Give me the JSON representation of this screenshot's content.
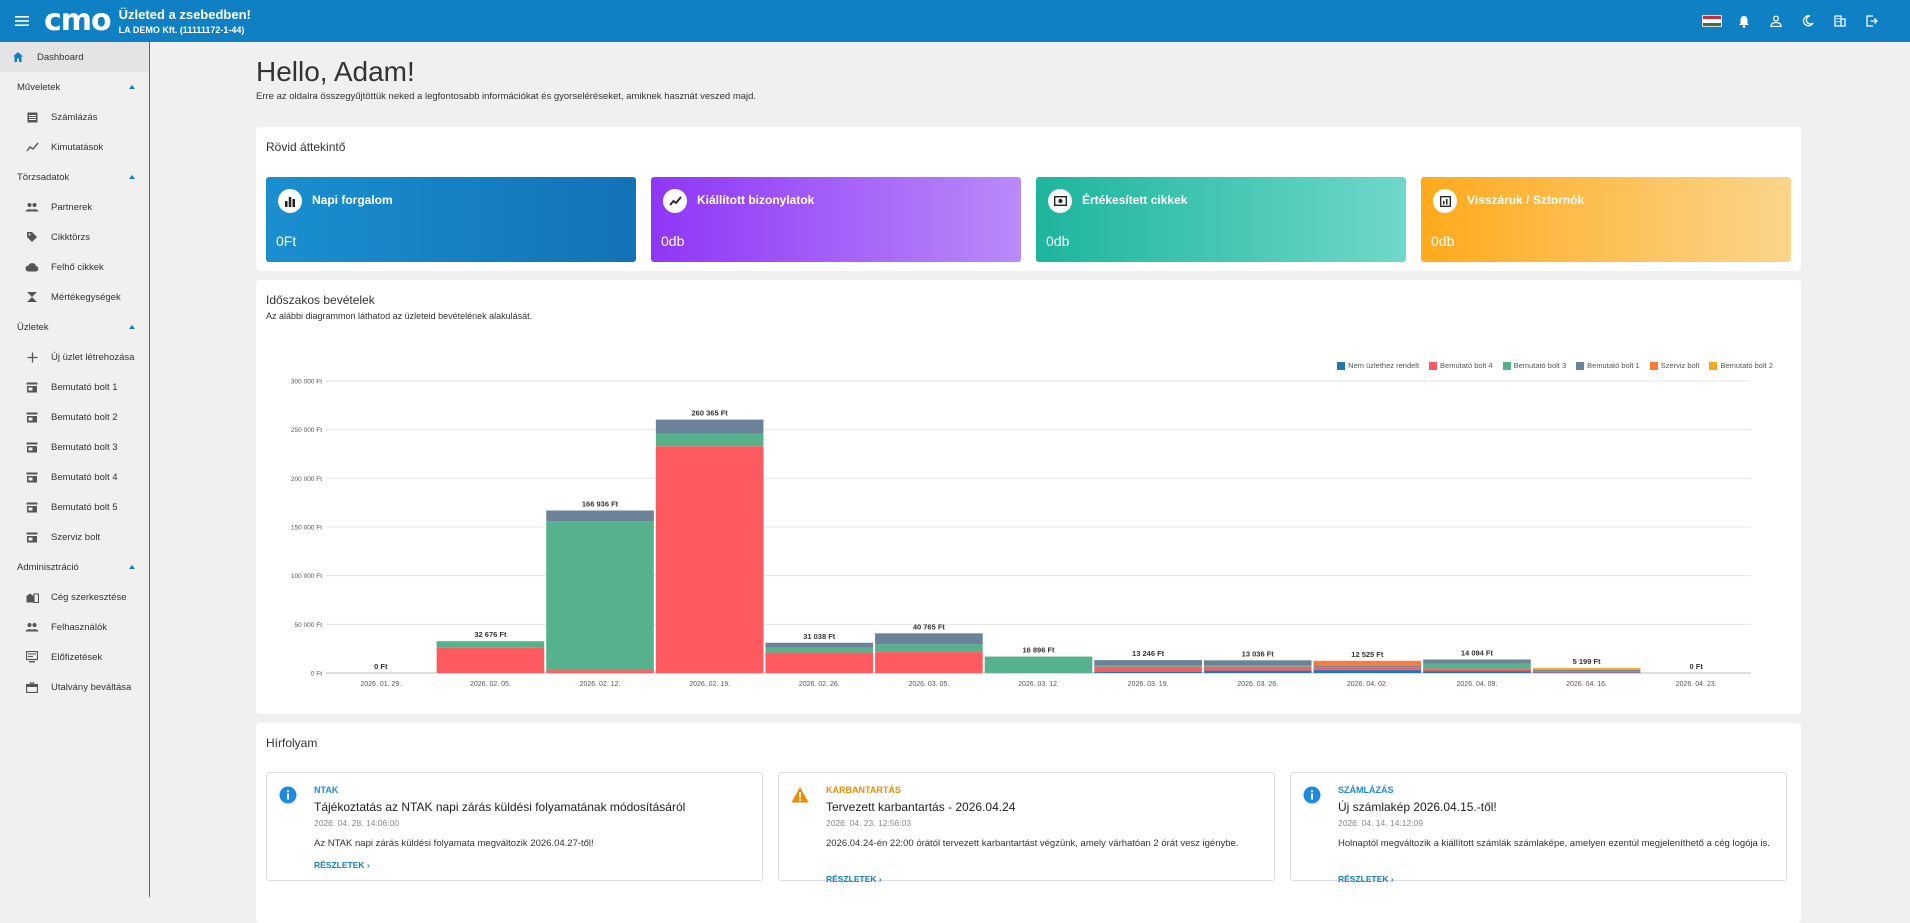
{
  "header": {
    "logo": "cmo",
    "title": "Üzleted a zsebedben!",
    "company": "LA DEMO Kft. (11111172-1-44)",
    "icons": [
      "menu-icon",
      "hungarian-flag-icon",
      "bell-icon",
      "user-icon",
      "moon-icon",
      "building-icon",
      "logout-icon"
    ]
  },
  "sidebar": {
    "dashboard": "Dashboard",
    "groups": {
      "muveletek": "Műveletek",
      "torzsadatok": "Törzsadatok",
      "uzletek": "Üzletek",
      "admin": "Adminisztráció"
    },
    "items": {
      "szamlazas": "Számlázás",
      "kimutatasok": "Kimutatások",
      "partnerek": "Partnerek",
      "cikktorzs": "Cikktörzs",
      "felho": "Felhő cikkek",
      "mertek": "Mértékegységek",
      "uj_uzlet": "Új üzlet létrehozása",
      "bolt1": "Bemutató bolt 1",
      "bolt2": "Bemutató bolt 2",
      "bolt3": "Bemutató bolt 3",
      "bolt4": "Bemutató bolt 4",
      "bolt5": "Bemutató bolt 5",
      "szerviz": "Szerviz bolt",
      "ceg": "Cég szerkesztése",
      "felhasznalok": "Felhasználók",
      "elofizetesek": "Előfizetések",
      "utalvany": "Utalvány beváltása"
    }
  },
  "main": {
    "greeting": "Hello, Adam!",
    "subtitle": "Erre az oldalra összegyűjtöttük neked a legfontosabb információkat és gyorseléréseket, amiknek hasznát veszed majd."
  },
  "overview": {
    "title": "Rövid áttekintő",
    "cards": [
      {
        "label": "Napi forgalom",
        "value": "0Ft",
        "icon": "bar-chart-icon",
        "color_from": "#1a8fd0",
        "color_to": "#1273b5"
      },
      {
        "label": "Kiállított bizonylatok",
        "value": "0db",
        "icon": "trend-icon",
        "color_from": "#8f36f7",
        "color_to": "#b98af9"
      },
      {
        "label": "Értékesített cikkek",
        "value": "0db",
        "icon": "cash-icon",
        "color_from": "#1db59c",
        "color_to": "#6fd8c9"
      },
      {
        "label": "Visszáruk / Sztornók",
        "value": "0db",
        "icon": "return-icon",
        "color_from": "#ffaa1c",
        "color_to": "#fad58c"
      }
    ]
  },
  "revenue": {
    "title": "Időszakos bevételek",
    "subtitle": "Az alábbi diagrammon láthatod az üzleteid bevételének alakulását."
  },
  "chart_data": {
    "type": "bar",
    "stacked": true,
    "categories": [
      "2026. 01. 29.",
      "2026. 02. 05.",
      "2026. 02. 12.",
      "2026. 02. 19.",
      "2026. 02. 26.",
      "2026. 03. 05.",
      "2026. 03. 12.",
      "2026. 03. 19.",
      "2026. 03. 26.",
      "2026. 04. 02.",
      "2026. 04. 09.",
      "2026. 04. 16.",
      "2026. 04. 23."
    ],
    "totals_labels": [
      "0 Ft",
      "32 676 Ft",
      "166 936 Ft",
      "260 365 Ft",
      "31 038 Ft",
      "40 765 Ft",
      "16 896 Ft",
      "13 246 Ft",
      "13 036 Ft",
      "12 525 Ft",
      "14 094 Ft",
      "5 199 Ft",
      "0 Ft"
    ],
    "series": [
      {
        "name": "Nem üzlethez rendelt",
        "color": "#1f77b4",
        "values": [
          0,
          0,
          0,
          0,
          0,
          0,
          0,
          1000,
          2500,
          3000,
          2000,
          500,
          0
        ]
      },
      {
        "name": "Bemutató bolt 4",
        "color": "#ff5a5f",
        "values": [
          0,
          26500,
          3000,
          233000,
          21000,
          21500,
          0,
          5500,
          4000,
          3000,
          2500,
          500,
          0
        ]
      },
      {
        "name": "Bemutató bolt 3",
        "color": "#56b28c",
        "values": [
          0,
          6176,
          153000,
          13000,
          5000,
          8000,
          16896,
          1000,
          1000,
          0,
          5000,
          1000,
          0
        ]
      },
      {
        "name": "Bemutató bolt 1",
        "color": "#6c8299",
        "values": [
          0,
          0,
          10936,
          14365,
          5038,
          11265,
          0,
          5746,
          5536,
          1525,
          4094,
          1199,
          0
        ]
      },
      {
        "name": "Szerviz bolt",
        "color": "#f47c3c",
        "values": [
          0,
          0,
          0,
          0,
          0,
          0,
          0,
          0,
          0,
          5000,
          500,
          0,
          0
        ]
      },
      {
        "name": "Bemutató bolt 2",
        "color": "#f5a623",
        "values": [
          0,
          0,
          0,
          0,
          0,
          0,
          0,
          0,
          0,
          0,
          0,
          2000,
          0
        ]
      }
    ],
    "y_ticks": [
      "0 Ft",
      "50 000 Ft",
      "100 000 Ft",
      "150 000 Ft",
      "200 000 Ft",
      "250 000 Ft",
      "300 000 Ft"
    ],
    "ylim": [
      0,
      300000
    ],
    "legend_position": "top-right",
    "grid": true
  },
  "news": {
    "title": "Hírfolyam",
    "items": [
      {
        "category": "NTAK",
        "cat_color": "#1e88e5",
        "icon": "info-icon",
        "title": "Tájékoztatás az NTAK napi zárás küldési folyamatának módosításáról",
        "date": "2026. 04. 28. 14:06:00",
        "body": "Az NTAK napi zárás küldési folyamata megváltozik 2026.04.27-től!",
        "more": "RÉSZLETEK"
      },
      {
        "category": "KARBANTARTÁS",
        "cat_color": "#f08c00",
        "icon": "warning-icon",
        "title": "Tervezett karbantartás - 2026.04.24",
        "date": "2026. 04. 23. 12:56:03",
        "body": "2026.04.24-én 22:00 órától tervezett karbantartást végzünk, amely várhatóan 2 órát vesz igénybe.",
        "more": "RÉSZLETEK"
      },
      {
        "category": "SZÁMLÁZÁS",
        "cat_color": "#1e88e5",
        "icon": "info-icon",
        "title": "Új számlakép 2026.04.15.-től!",
        "date": "2026. 04. 14. 14:12:09",
        "body": "Holnaptól megváltozik a kiállított számlák számlaképe, amelyen ezentúl megjeleníthető a cég logója is.",
        "more": "RÉSZLETEK"
      }
    ]
  }
}
